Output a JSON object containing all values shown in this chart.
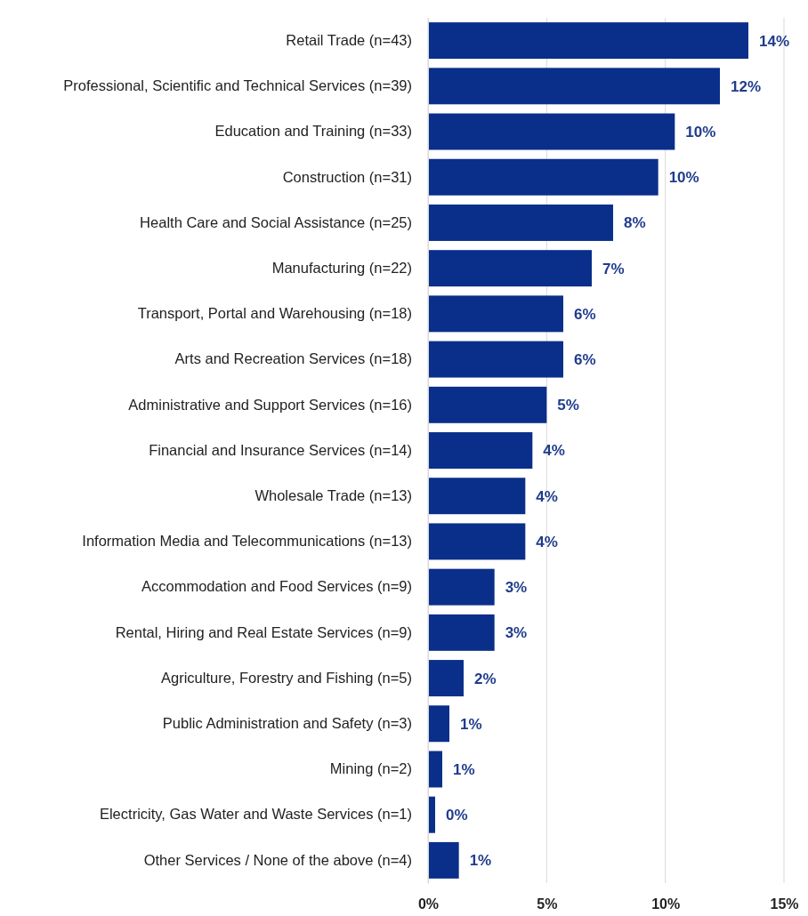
{
  "chart_data": {
    "type": "bar",
    "orientation": "horizontal",
    "categories": [
      "Retail Trade (n=43)",
      "Professional, Scientific and Technical Services (n=39)",
      "Education and Training (n=33)",
      "Construction (n=31)",
      "Health Care and Social Assistance (n=25)",
      "Manufacturing (n=22)",
      "Transport, Portal and Warehousing (n=18)",
      "Arts and Recreation Services (n=18)",
      "Administrative and Support Services (n=16)",
      "Financial and Insurance Services (n=14)",
      "Wholesale Trade (n=13)",
      "Information Media and Telecommunications (n=13)",
      "Accommodation and Food Services (n=9)",
      "Rental, Hiring and Real Estate Services (n=9)",
      "Agriculture, Forestry and Fishing (n=5)",
      "Public Administration and Safety (n=3)",
      "Mining (n=2)",
      "Electricity, Gas Water and Waste Services (n=1)",
      "Other Services / None of the above (n=4)"
    ],
    "values": [
      13.5,
      12.3,
      10.4,
      9.7,
      7.8,
      6.9,
      5.7,
      5.7,
      5.0,
      4.4,
      4.1,
      4.1,
      2.8,
      2.8,
      1.5,
      0.9,
      0.6,
      0.3,
      1.3
    ],
    "value_labels": [
      "14%",
      "12%",
      "10%",
      "10%",
      "8%",
      "7%",
      "6%",
      "6%",
      "5%",
      "4%",
      "4%",
      "4%",
      "3%",
      "3%",
      "2%",
      "1%",
      "1%",
      "0%",
      "1%"
    ],
    "color": "#0a2f8a",
    "xlim": [
      0,
      15
    ],
    "xticks": [
      {
        "value": 0,
        "label": "0%"
      },
      {
        "value": 5,
        "label": "5%"
      },
      {
        "value": 10,
        "label": "10%"
      },
      {
        "value": 15,
        "label": "15%"
      }
    ],
    "grid": "x"
  }
}
